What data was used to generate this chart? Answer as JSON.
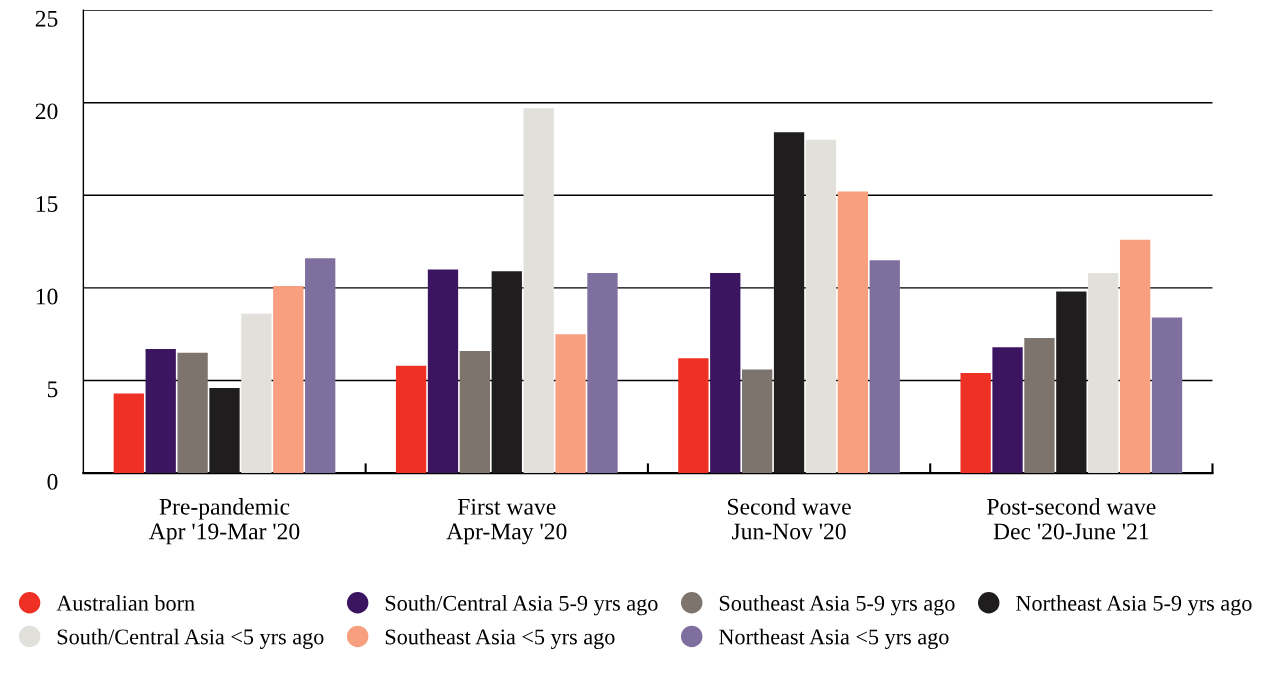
{
  "chart_data": {
    "type": "bar",
    "categories": [
      "Pre-pandemic\nApr '19-Mar '20",
      "First wave\nApr-May '20",
      "Second wave\nJun-Nov '20",
      "Post-second wave\nDec '20-June '21"
    ],
    "series": [
      {
        "name": "Australian born",
        "color": "#ee3124",
        "values": [
          4.3,
          5.8,
          6.2,
          5.4
        ]
      },
      {
        "name": "South/Central Asia 5-9 yrs ago",
        "color": "#3b1560",
        "values": [
          6.7,
          11.0,
          10.8,
          6.8
        ]
      },
      {
        "name": "Southeast Asia 5-9 yrs ago",
        "color": "#7d746e",
        "values": [
          6.5,
          6.6,
          5.6,
          7.3
        ]
      },
      {
        "name": "Northeast Asia 5-9 yrs ago",
        "color": "#1f1d1e",
        "values": [
          4.6,
          10.9,
          18.4,
          9.8
        ]
      },
      {
        "name": "South/Central Asia <5 yrs ago",
        "color": "#e1e0db",
        "values": [
          8.6,
          19.7,
          18.0,
          10.8
        ]
      },
      {
        "name": "Southeast Asia <5 yrs ago",
        "color": "#f79f7e",
        "values": [
          10.1,
          7.5,
          15.2,
          12.6
        ]
      },
      {
        "name": "Northeast Asia <5 yrs ago",
        "color": "#7f6f9e",
        "values": [
          11.6,
          10.8,
          11.5,
          8.4
        ]
      }
    ],
    "ylim": [
      0,
      25
    ],
    "yticks": [
      0,
      5,
      10,
      15,
      20,
      25
    ],
    "grid": "y",
    "legend": "bottom",
    "marker": "circle"
  }
}
